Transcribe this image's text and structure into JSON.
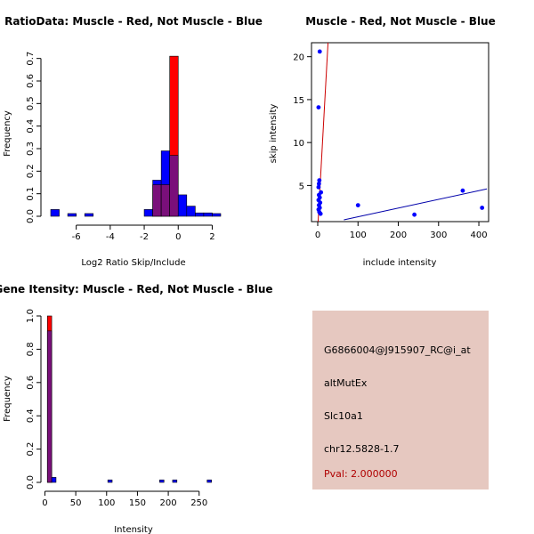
{
  "colors": {
    "muscle": "#ff0000",
    "not_muscle": "#0000ff",
    "overlap": "#7a0f7a",
    "panel_bg": "#e6c8c0",
    "pval": "#b00000"
  },
  "chart_data": [
    {
      "type": "bar",
      "title": "RatioData: Muscle - Red, Not Muscle - Blue",
      "xlabel": "Log2 Ratio Skip/Include",
      "ylabel": "Frequency",
      "xlim": [
        -7.5,
        2.5
      ],
      "ylim": [
        0,
        0.72
      ],
      "xticks": [
        -6,
        -4,
        -2,
        0,
        2
      ],
      "xtick_labels": [
        "-6",
        "-4",
        "-2",
        "0",
        "2"
      ],
      "yticks": [
        0.0,
        0.1,
        0.2,
        0.3,
        0.4,
        0.5,
        0.6,
        0.7
      ],
      "ytick_labels": [
        "0.0",
        "0.1",
        "0.2",
        "0.3",
        "0.4",
        "0.5",
        "0.6",
        "0.7"
      ],
      "bin_width": 0.5,
      "series": [
        {
          "name": "Not Muscle",
          "color": "blue",
          "bins": [
            [
              -7.5,
              0.03
            ],
            [
              -6.5,
              0.012
            ],
            [
              -5.5,
              0.012
            ],
            [
              -2.0,
              0.03
            ],
            [
              -1.5,
              0.16
            ],
            [
              -1.0,
              0.29
            ],
            [
              -0.5,
              0.27
            ],
            [
              0.0,
              0.095
            ],
            [
              0.5,
              0.045
            ],
            [
              1.0,
              0.015
            ],
            [
              1.5,
              0.015
            ],
            [
              2.0,
              0.012
            ]
          ]
        },
        {
          "name": "Muscle",
          "color": "red",
          "bins": [
            [
              -1.5,
              0.14
            ],
            [
              -1.0,
              0.14
            ],
            [
              -0.5,
              0.71
            ]
          ]
        }
      ]
    },
    {
      "type": "scatter",
      "title": "Muscle - Red, Not Muscle - Blue",
      "xlabel": "include intensity",
      "ylabel": "skip intensity",
      "xlim": [
        -10,
        420
      ],
      "ylim": [
        1,
        21
      ],
      "xticks": [
        0,
        100,
        200,
        300,
        400
      ],
      "xtick_labels": [
        "0",
        "100",
        "200",
        "300",
        "400"
      ],
      "yticks": [
        5,
        10,
        15,
        20
      ],
      "ytick_labels": [
        "5",
        "10",
        "15",
        "20"
      ],
      "points": [
        [
          5,
          20.6
        ],
        [
          2,
          14.1
        ],
        [
          4,
          5.6
        ],
        [
          3,
          5.2
        ],
        [
          2,
          4.8
        ],
        [
          8,
          4.2
        ],
        [
          3,
          3.9
        ],
        [
          5,
          3.6
        ],
        [
          2,
          3.3
        ],
        [
          6,
          3.0
        ],
        [
          3,
          2.7
        ],
        [
          5,
          2.4
        ],
        [
          2,
          2.2
        ],
        [
          4,
          1.9
        ],
        [
          7,
          1.7
        ],
        [
          100,
          2.7
        ],
        [
          240,
          1.6
        ],
        [
          360,
          4.4
        ],
        [
          408,
          2.4
        ]
      ],
      "lines": [
        {
          "name": "Muscle fit",
          "color": "red",
          "from": [
            0,
            0
          ],
          "to": [
            26,
            22
          ]
        },
        {
          "name": "Not Muscle fit",
          "color": "blue",
          "from": [
            65,
            1.0
          ],
          "to": [
            420,
            4.6
          ]
        }
      ]
    },
    {
      "type": "bar",
      "title": "Gene Itensity: Muscle - Red, Not Muscle - Blue",
      "xlabel": "Intensity",
      "ylabel": "Frequency",
      "xlim": [
        -5,
        285
      ],
      "ylim": [
        0,
        1.0
      ],
      "xticks": [
        0,
        50,
        100,
        150,
        200,
        250
      ],
      "xtick_labels": [
        "0",
        "50",
        "100",
        "150",
        "200",
        "250"
      ],
      "yticks": [
        0.0,
        0.2,
        0.4,
        0.6,
        0.8,
        1.0
      ],
      "ytick_labels": [
        "0.0",
        "0.2",
        "0.4",
        "0.6",
        "0.8",
        "1.0"
      ],
      "bin_width": 7,
      "series": [
        {
          "name": "Not Muscle",
          "color": "blue",
          "bins": [
            [
              4,
              0.91
            ],
            [
              11,
              0.03
            ],
            [
              102,
              0.015
            ],
            [
              186,
              0.015
            ],
            [
              207,
              0.015
            ],
            [
              263,
              0.015
            ]
          ]
        },
        {
          "name": "Muscle",
          "color": "red",
          "bins": [
            [
              4,
              1.0
            ]
          ]
        }
      ]
    }
  ],
  "info_panel": {
    "probe_id": "G6866004@J915907_RC@i_at",
    "event_type": "altMutEx",
    "gene": "Slc10a1",
    "location": "chr12.5828-1.7",
    "pval": "Pval: 2.000000"
  }
}
